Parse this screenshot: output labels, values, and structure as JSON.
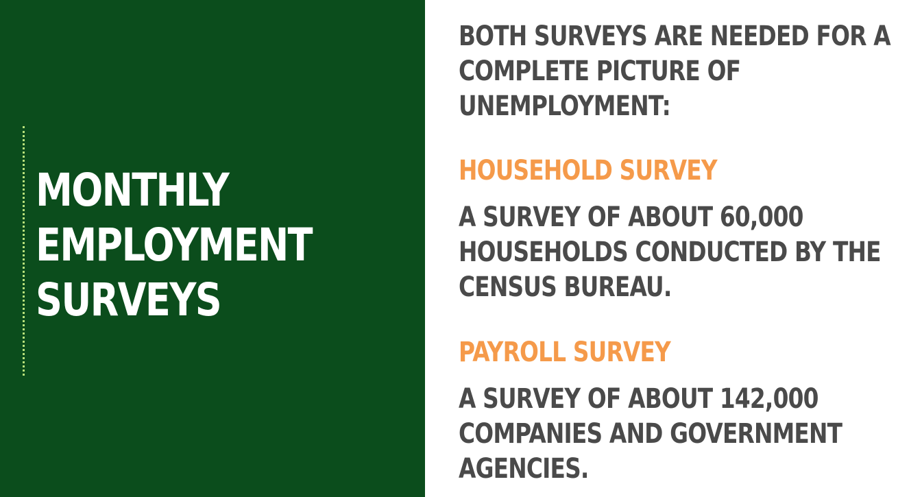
{
  "left": {
    "title_lines": [
      "MONTHLY",
      "EMPLOYMENT",
      "SURVEYS"
    ]
  },
  "right": {
    "intro_lines": [
      "BOTH SURVEYS ARE NEEDED FOR A",
      "COMPLETE PICTURE OF",
      "UNEMPLOYMENT:"
    ],
    "household": {
      "heading": "HOUSEHOLD SURVEY",
      "desc_lines": [
        "A SURVEY OF ABOUT 60,000",
        "HOUSEHOLDS CONDUCTED BY THE",
        "CENSUS BUREAU."
      ]
    },
    "payroll": {
      "heading": "PAYROLL SURVEY",
      "desc_lines": [
        "A SURVEY OF ABOUT 142,000",
        "COMPANIES AND GOVERNMENT",
        "AGENCIES."
      ]
    }
  },
  "colors": {
    "left_background": "#0b4d1c",
    "accent_orange": "#f59a4a",
    "body_text": "#4a4a4a",
    "dotted_line": "#b8e07a"
  }
}
